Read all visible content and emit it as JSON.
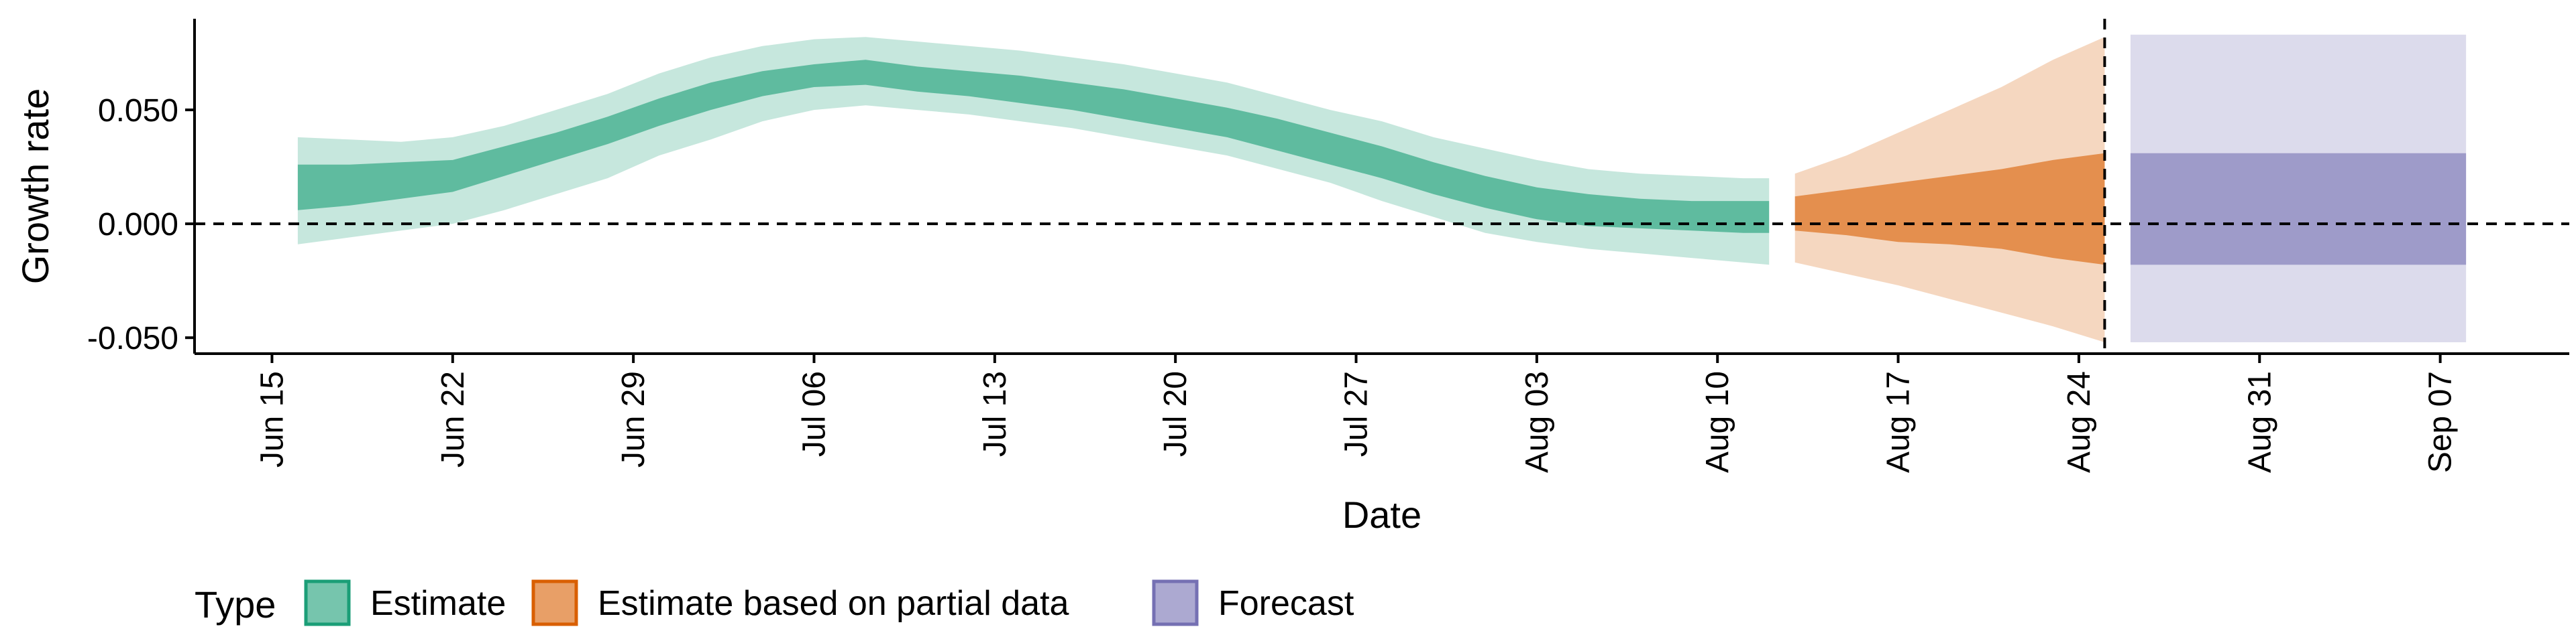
{
  "chart_data": {
    "type": "area",
    "title": "",
    "xlabel": "Date",
    "ylabel": "Growth rate",
    "ylim": [
      -0.057,
      0.09
    ],
    "xlim": [
      "2020-06-12",
      "2020-09-12"
    ],
    "y_ticks": [
      -0.05,
      0.0,
      0.05
    ],
    "y_tick_labels": [
      "-0.050",
      "0.000",
      "0.050"
    ],
    "x_ticks": [
      "2020-06-15",
      "2020-06-22",
      "2020-06-29",
      "2020-07-06",
      "2020-07-13",
      "2020-07-20",
      "2020-07-27",
      "2020-08-03",
      "2020-08-10",
      "2020-08-17",
      "2020-08-24",
      "2020-08-31",
      "2020-09-07"
    ],
    "x_tick_labels": [
      "Jun 15",
      "Jun 22",
      "Jun 29",
      "Jul 06",
      "Jul 13",
      "Jul 20",
      "Jul 27",
      "Aug 03",
      "Aug 10",
      "Aug 17",
      "Aug 24",
      "Aug 31",
      "Sep 07"
    ],
    "reference_lines": [
      {
        "axis": "y",
        "value": 0,
        "style": "dashed"
      },
      {
        "axis": "x",
        "value": "2020-08-25",
        "style": "dashed"
      }
    ],
    "grid": false,
    "legend": {
      "title": "Type",
      "position": "bottom-left",
      "entries": [
        {
          "label": "Estimate",
          "color": "#1b9e77"
        },
        {
          "label": "Estimate based on partial data",
          "color": "#d95f02"
        },
        {
          "label": "Forecast",
          "color": "#7570b3"
        }
      ]
    },
    "series": [
      {
        "name": "Estimate",
        "color": "#1b9e77",
        "x": [
          "2020-06-16",
          "2020-06-18",
          "2020-06-20",
          "2020-06-22",
          "2020-06-24",
          "2020-06-26",
          "2020-06-28",
          "2020-06-30",
          "2020-07-02",
          "2020-07-04",
          "2020-07-06",
          "2020-07-08",
          "2020-07-10",
          "2020-07-12",
          "2020-07-14",
          "2020-07-16",
          "2020-07-18",
          "2020-07-20",
          "2020-07-22",
          "2020-07-24",
          "2020-07-26",
          "2020-07-28",
          "2020-07-30",
          "2020-08-01",
          "2020-08-03",
          "2020-08-05",
          "2020-08-07",
          "2020-08-09",
          "2020-08-11",
          "2020-08-12"
        ],
        "ci90_low": [
          -0.009,
          -0.006,
          -0.003,
          0.0,
          0.006,
          0.013,
          0.02,
          0.03,
          0.037,
          0.045,
          0.05,
          0.052,
          0.05,
          0.048,
          0.045,
          0.042,
          0.038,
          0.034,
          0.03,
          0.024,
          0.018,
          0.01,
          0.003,
          -0.004,
          -0.008,
          -0.011,
          -0.013,
          -0.015,
          -0.017,
          -0.018
        ],
        "ci50_low": [
          0.006,
          0.008,
          0.011,
          0.014,
          0.021,
          0.028,
          0.035,
          0.043,
          0.05,
          0.056,
          0.06,
          0.061,
          0.058,
          0.056,
          0.053,
          0.05,
          0.046,
          0.042,
          0.038,
          0.032,
          0.026,
          0.02,
          0.013,
          0.007,
          0.002,
          -0.001,
          -0.002,
          -0.003,
          -0.004,
          -0.004
        ],
        "ci50_high": [
          0.026,
          0.026,
          0.027,
          0.028,
          0.034,
          0.04,
          0.047,
          0.055,
          0.062,
          0.067,
          0.07,
          0.072,
          0.069,
          0.067,
          0.065,
          0.062,
          0.059,
          0.055,
          0.051,
          0.046,
          0.04,
          0.034,
          0.027,
          0.021,
          0.016,
          0.013,
          0.011,
          0.01,
          0.01,
          0.01
        ],
        "ci90_high": [
          0.038,
          0.037,
          0.036,
          0.038,
          0.043,
          0.05,
          0.057,
          0.066,
          0.073,
          0.078,
          0.081,
          0.082,
          0.08,
          0.078,
          0.076,
          0.073,
          0.07,
          0.066,
          0.062,
          0.056,
          0.05,
          0.045,
          0.038,
          0.033,
          0.028,
          0.024,
          0.022,
          0.021,
          0.02,
          0.02
        ]
      },
      {
        "name": "Estimate based on partial data",
        "color": "#d95f02",
        "x": [
          "2020-08-13",
          "2020-08-15",
          "2020-08-17",
          "2020-08-19",
          "2020-08-21",
          "2020-08-23",
          "2020-08-25"
        ],
        "ci90_low": [
          -0.017,
          -0.022,
          -0.027,
          -0.033,
          -0.039,
          -0.045,
          -0.052
        ],
        "ci50_low": [
          -0.003,
          -0.005,
          -0.008,
          -0.009,
          -0.011,
          -0.015,
          -0.018
        ],
        "ci50_high": [
          0.012,
          0.015,
          0.018,
          0.021,
          0.024,
          0.028,
          0.031
        ],
        "ci90_high": [
          0.022,
          0.03,
          0.04,
          0.05,
          0.06,
          0.072,
          0.082
        ]
      },
      {
        "name": "Forecast",
        "color": "#7570b3",
        "x": [
          "2020-08-26",
          "2020-09-08"
        ],
        "ci90_low": [
          -0.052,
          -0.052
        ],
        "ci50_low": [
          -0.018,
          -0.018
        ],
        "ci50_high": [
          0.031,
          0.031
        ],
        "ci90_high": [
          0.083,
          0.083
        ]
      }
    ]
  }
}
